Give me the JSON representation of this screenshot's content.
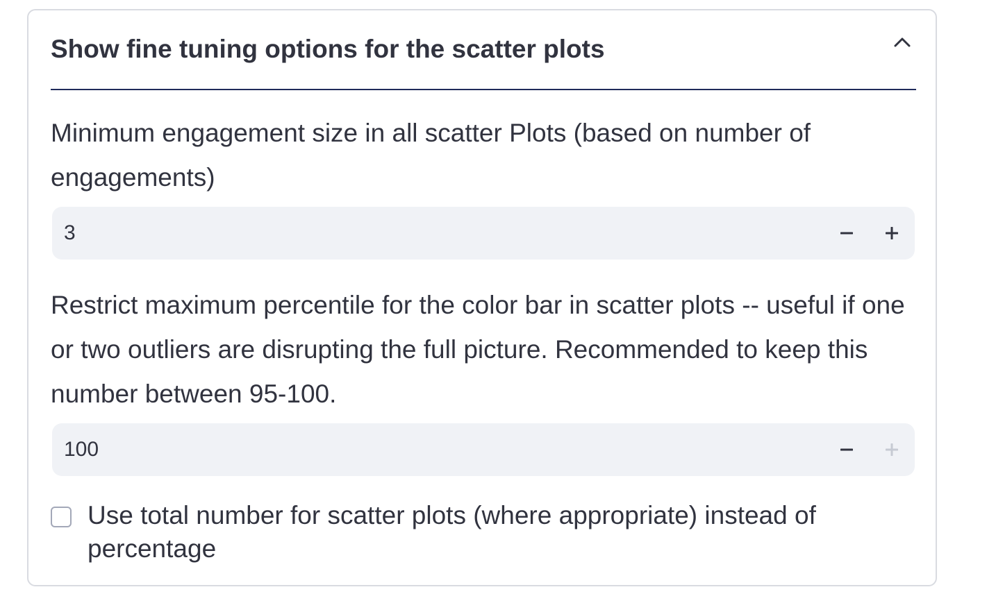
{
  "expander": {
    "title": "Show fine tuning options for the scatter plots",
    "state_icon": "chevron-up-icon",
    "expanded": true
  },
  "min_engagement": {
    "label": "Minimum engagement size in all scatter Plots (based on number of engagements)",
    "value": "3",
    "decrement_icon": "minus-icon",
    "increment_icon": "plus-icon",
    "increment_enabled": true
  },
  "max_percentile": {
    "label": "Restrict maximum percentile for the color bar in scatter plots -- useful if one or two outliers are disrupting the full picture. Recommended to keep this number between 95-100.",
    "value": "100",
    "decrement_icon": "minus-icon",
    "increment_icon": "plus-icon",
    "increment_enabled": false
  },
  "use_total_number": {
    "label": "Use total number for scatter plots (where appropriate) instead of percentage",
    "checked": false
  },
  "colors": {
    "text": "#31333f",
    "input_bg": "#f0f2f6",
    "border": "#d9dbe1",
    "header_rule": "#1f2a5a",
    "disabled_icon": "#c6cad3"
  }
}
